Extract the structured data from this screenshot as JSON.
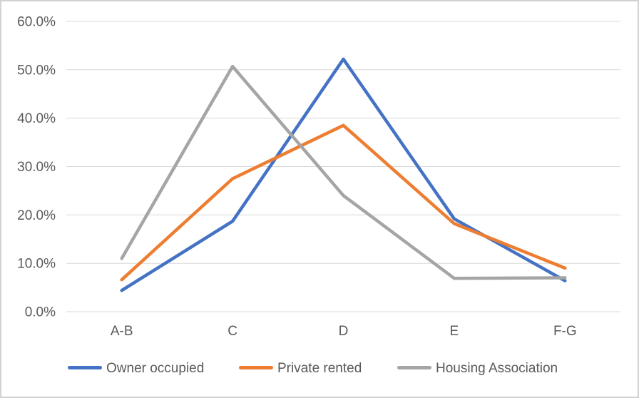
{
  "frame": {
    "background_color": "#FFFFFF",
    "border_color": "#D2D2D2"
  },
  "chart_data": {
    "type": "line",
    "title": "",
    "categories": [
      "A-B",
      "C",
      "D",
      "E",
      "F-G"
    ],
    "series": [
      {
        "name": "Owner occupied",
        "color": "#4472C4",
        "values": [
          4.4,
          18.7,
          52.2,
          19.2,
          6.4
        ]
      },
      {
        "name": "Private rented",
        "color": "#ED7D31",
        "values": [
          6.6,
          27.5,
          38.5,
          18.2,
          9.0
        ]
      },
      {
        "name": "Housing Association",
        "color": "#A5A5A5",
        "values": [
          11.0,
          50.7,
          24.0,
          6.9,
          7.0
        ]
      }
    ],
    "xlabel": "",
    "ylabel": "",
    "ylim": [
      0,
      60
    ],
    "ytick_step": 10,
    "ytick_labels": [
      "0.0%",
      "10.0%",
      "20.0%",
      "30.0%",
      "40.0%",
      "50.0%",
      "60.0%"
    ],
    "grid": true,
    "gridline_color": "#D9D9D9",
    "axis_text_color": "#595959",
    "legend_position": "bottom",
    "line_width": 4.5
  }
}
